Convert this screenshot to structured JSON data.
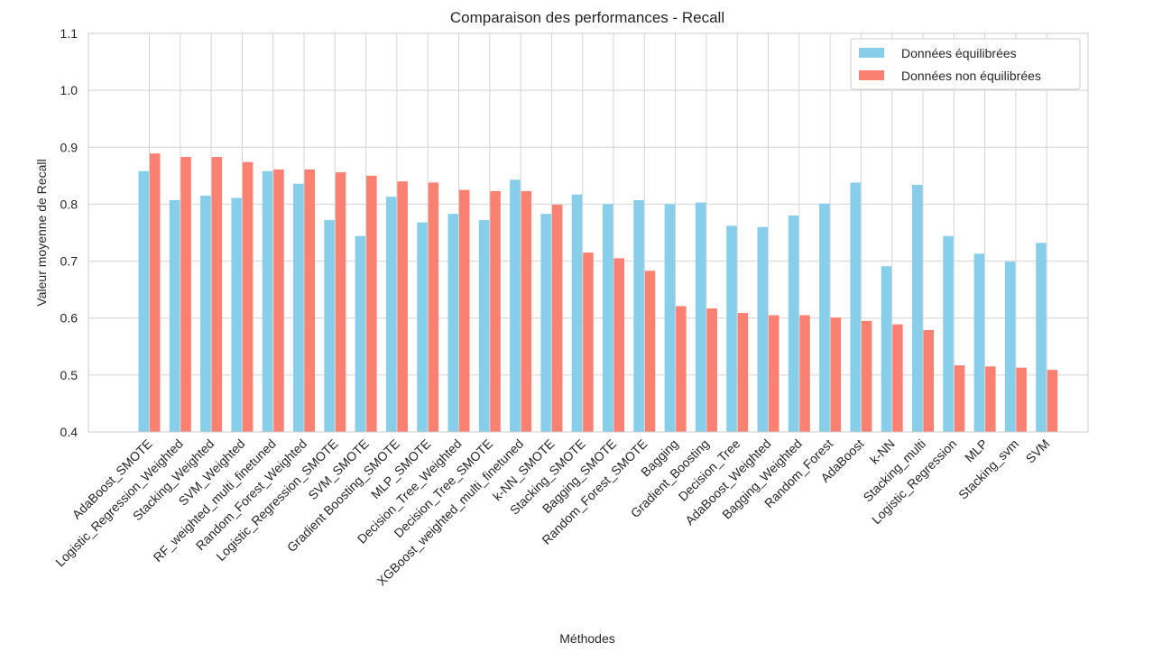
{
  "chart_data": {
    "type": "bar",
    "title": "Comparaison des performances - Recall",
    "xlabel": "Méthodes",
    "ylabel": "Valeur moyenne de Recall",
    "ylim": [
      0.4,
      1.1
    ],
    "yticks": [
      "0.4",
      "0.5",
      "0.6",
      "0.7",
      "0.8",
      "0.9",
      "1.0",
      "1.1"
    ],
    "grid": true,
    "legend_position": "top-right",
    "categories": [
      "AdaBoost_SMOTE",
      "Logistic_Regression_Weighted",
      "Stacking_Weighted",
      "SVM_Weighted",
      "RF_weighted_multi_finetuned",
      "Random_Forest_Weighted",
      "Logistic_Regression_SMOTE",
      "SVM_SMOTE",
      "Gradient Boosting_SMOTE",
      "MLP_SMOTE",
      "Decision_Tree_Weighted",
      "Decision_Tree_SMOTE",
      "XGBoost_weighted_multi_finetuned",
      "k-NN_SMOTE",
      "Stacking_SMOTE",
      "Bagging_SMOTE",
      "Random_Forest_SMOTE",
      "Bagging",
      "Gradient_Boosting",
      "Decision_Tree",
      "AdaBoost_Weighted",
      "Bagging_Weighted",
      "Random_Forest",
      "AdaBoost",
      "k-NN",
      "Stacking_multi",
      "Logistic_Regression",
      "MLP",
      "Stacking_svm",
      "SVM"
    ],
    "series": [
      {
        "name": "Données équilibrées",
        "color": "#87CEEB",
        "values": [
          0.858,
          0.807,
          0.815,
          0.811,
          0.858,
          0.836,
          0.772,
          0.744,
          0.813,
          0.768,
          0.783,
          0.772,
          0.843,
          0.783,
          0.817,
          0.8,
          0.807,
          0.8,
          0.803,
          0.762,
          0.76,
          0.78,
          0.801,
          0.838,
          0.691,
          0.834,
          0.744,
          0.713,
          0.699,
          0.732
        ]
      },
      {
        "name": "Données non équilibrées",
        "color": "#FA8072",
        "values": [
          0.889,
          0.883,
          0.883,
          0.874,
          0.861,
          0.861,
          0.856,
          0.85,
          0.84,
          0.838,
          0.825,
          0.823,
          0.823,
          0.799,
          0.715,
          0.705,
          0.683,
          0.621,
          0.617,
          0.609,
          0.605,
          0.605,
          0.601,
          0.595,
          0.589,
          0.579,
          0.517,
          0.515,
          0.513,
          0.509
        ]
      }
    ]
  }
}
